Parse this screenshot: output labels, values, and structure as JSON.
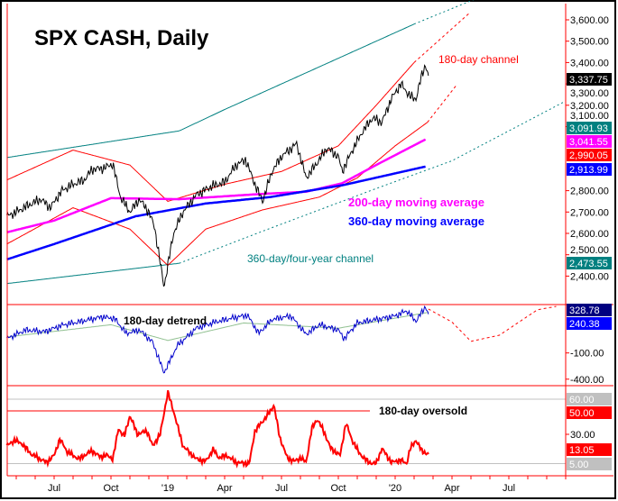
{
  "chart_data": {
    "type": "line",
    "title": "SPX CASH, Daily",
    "x_unit": "months since 2018-04-01",
    "x_ticks": [
      {
        "label": "Jul",
        "m": 3
      },
      {
        "label": "Oct",
        "m": 6
      },
      {
        "label": "'19",
        "m": 9
      },
      {
        "label": "Apr",
        "m": 12
      },
      {
        "label": "Jul",
        "m": 15
      },
      {
        "label": "Oct",
        "m": 18
      },
      {
        "label": "'20",
        "m": 21
      },
      {
        "label": "Apr",
        "m": 24
      },
      {
        "label": "Jul",
        "m": 27
      }
    ],
    "price_panel": {
      "ylim": [
        2330,
        3690
      ],
      "y_ticks": [
        "3,600.00",
        "3,500.00",
        "3,400.00",
        "3,300.00",
        "3,200.00",
        "3,100.00",
        "2,800.00",
        "2,700.00",
        "2,600.00",
        "2,500.00",
        "2,400.00"
      ],
      "y_tick_values": [
        3600,
        3500,
        3400,
        3300,
        3200,
        3100,
        2800,
        2700,
        2600,
        2500,
        2400
      ],
      "price": [
        [
          0.5,
          2680
        ],
        [
          1,
          2700
        ],
        [
          1.6,
          2730
        ],
        [
          2.3,
          2760
        ],
        [
          2.8,
          2720
        ],
        [
          3.4,
          2800
        ],
        [
          4,
          2830
        ],
        [
          4.6,
          2850
        ],
        [
          5,
          2900
        ],
        [
          5.6,
          2905
        ],
        [
          6.1,
          2925
        ],
        [
          6.5,
          2770
        ],
        [
          7,
          2700
        ],
        [
          7.5,
          2760
        ],
        [
          8,
          2700
        ],
        [
          8.3,
          2630
        ],
        [
          8.8,
          2350
        ],
        [
          9.3,
          2600
        ],
        [
          9.8,
          2700
        ],
        [
          10.5,
          2780
        ],
        [
          11.3,
          2820
        ],
        [
          12,
          2840
        ],
        [
          12.6,
          2920
        ],
        [
          13.1,
          2945
        ],
        [
          13.6,
          2830
        ],
        [
          14,
          2750
        ],
        [
          14.5,
          2890
        ],
        [
          15,
          2960
        ],
        [
          15.8,
          3020
        ],
        [
          16.3,
          2860
        ],
        [
          16.8,
          2920
        ],
        [
          17.4,
          3000
        ],
        [
          18,
          2960
        ],
        [
          18.2,
          2890
        ],
        [
          18.8,
          3000
        ],
        [
          19.3,
          3080
        ],
        [
          19.8,
          3140
        ],
        [
          20.3,
          3120
        ],
        [
          20.8,
          3230
        ],
        [
          21.3,
          3300
        ],
        [
          21.8,
          3240
        ],
        [
          22.1,
          3230
        ],
        [
          22.4,
          3340
        ],
        [
          22.6,
          3390
        ],
        [
          22.75,
          3338
        ]
      ],
      "ma200": [
        [
          0.5,
          2605
        ],
        [
          3,
          2660
        ],
        [
          6,
          2765
        ],
        [
          9.6,
          2760
        ],
        [
          14,
          2785
        ],
        [
          16.3,
          2795
        ],
        [
          18.2,
          2835
        ],
        [
          20.1,
          2925
        ],
        [
          22.6,
          3040
        ]
      ],
      "ma360": [
        [
          0.5,
          2478
        ],
        [
          3,
          2550
        ],
        [
          7.3,
          2680
        ],
        [
          11,
          2740
        ],
        [
          14.4,
          2770
        ],
        [
          18.2,
          2825
        ],
        [
          22.6,
          2913
        ]
      ],
      "channel180_upper": [
        [
          0.5,
          2850
        ],
        [
          4,
          2990
        ],
        [
          7,
          2920
        ],
        [
          9,
          2750
        ],
        [
          12,
          2830
        ],
        [
          15,
          2890
        ],
        [
          18,
          3010
        ],
        [
          20,
          3200
        ],
        [
          22,
          3400
        ]
      ],
      "channel180_upper_proj": [
        [
          22,
          3400
        ],
        [
          24.9,
          3630
        ]
      ],
      "channel180_lower": [
        [
          0.5,
          2550
        ],
        [
          4,
          2720
        ],
        [
          7,
          2620
        ],
        [
          9,
          2450
        ],
        [
          11,
          2620
        ],
        [
          14,
          2710
        ],
        [
          17,
          2770
        ],
        [
          19,
          2860
        ],
        [
          21,
          3010
        ],
        [
          22.7,
          3120
        ]
      ],
      "channel180_lower_proj": [
        [
          22.7,
          3120
        ],
        [
          24.2,
          3290
        ]
      ],
      "channel360_upper": [
        [
          0.5,
          2955
        ],
        [
          9.6,
          3080
        ],
        [
          12,
          3180
        ],
        [
          15,
          3300
        ],
        [
          18,
          3420
        ],
        [
          22,
          3580
        ]
      ],
      "channel360_upper_proj": [
        [
          22,
          3580
        ],
        [
          25.3,
          3700
        ]
      ],
      "channel360_lower": [
        [
          0.5,
          2365
        ],
        [
          9.6,
          2460
        ]
      ],
      "channel360_lower_proj": [
        [
          9.6,
          2460
        ],
        [
          14,
          2610
        ],
        [
          20,
          2810
        ],
        [
          24,
          2940
        ],
        [
          30,
          3220
        ]
      ],
      "annotations": [
        "180-day channel",
        "200-day moving average",
        "360-day moving average",
        "360-day/four-year channel"
      ],
      "last_values": [
        {
          "label": "3,337.75",
          "color": "#000000",
          "text": "#ffffff",
          "v": 3337.75
        },
        {
          "label": "3,091.93",
          "color": "#008080",
          "text": "#ffffff",
          "v": 3091.93
        },
        {
          "label": "3,041.55",
          "color": "#ff00ff",
          "text": "#ffffff",
          "v": 3041.55
        },
        {
          "label": "2,990.05",
          "color": "#ff0000",
          "text": "#ffffff",
          "v": 2990.05
        },
        {
          "label": "2,913.99",
          "color": "#0000ff",
          "text": "#ffffff",
          "v": 2913.99
        },
        {
          "label": "2,473.55",
          "color": "#008080",
          "text": "#ffffff",
          "v": 2473.55
        }
      ]
    },
    "detrend_panel": {
      "label": "180-day detrend",
      "y_ticks": [
        "-100.00",
        "-400.00"
      ],
      "y_tick_values": [
        -100,
        -400
      ],
      "series": [
        [
          0.5,
          -40
        ],
        [
          1.5,
          60
        ],
        [
          2.5,
          40
        ],
        [
          3.5,
          120
        ],
        [
          4.5,
          160
        ],
        [
          5.5,
          210
        ],
        [
          6.2,
          190
        ],
        [
          6.8,
          20
        ],
        [
          7.5,
          60
        ],
        [
          8.2,
          -80
        ],
        [
          8.8,
          -430
        ],
        [
          9.5,
          -120
        ],
        [
          10.5,
          80
        ],
        [
          11.5,
          150
        ],
        [
          12.5,
          200
        ],
        [
          13.2,
          230
        ],
        [
          13.8,
          20
        ],
        [
          14.5,
          180
        ],
        [
          15.5,
          220
        ],
        [
          16.3,
          10
        ],
        [
          17,
          120
        ],
        [
          18,
          60
        ],
        [
          18.3,
          -40
        ],
        [
          19,
          140
        ],
        [
          20,
          180
        ],
        [
          21,
          220
        ],
        [
          21.6,
          280
        ],
        [
          22.1,
          160
        ],
        [
          22.6,
          330
        ],
        [
          22.75,
          240
        ]
      ],
      "projection": [
        [
          22.75,
          300
        ],
        [
          24,
          150
        ],
        [
          25,
          -70
        ],
        [
          26.5,
          0
        ],
        [
          28.5,
          290
        ],
        [
          29.5,
          330
        ]
      ],
      "last_values": [
        {
          "label": "328.78",
          "color": "#000080"
        },
        {
          "label": "240.38",
          "color": "#0000ff"
        }
      ]
    },
    "oscillator_panel": {
      "label": "180-day oversold",
      "y_ticks": [
        "30.00"
      ],
      "levels": [
        {
          "label": "60.00",
          "v": 60,
          "color": "#c0c0c0"
        },
        {
          "label": "50.00",
          "v": 50,
          "color": "#ff0000"
        },
        {
          "label": "5.00",
          "v": 5,
          "color": "#c0c0c0"
        }
      ],
      "series": [
        [
          0.5,
          20
        ],
        [
          0.9,
          25
        ],
        [
          1.3,
          22
        ],
        [
          1.8,
          13
        ],
        [
          2.6,
          6
        ],
        [
          3,
          12
        ],
        [
          3.3,
          26
        ],
        [
          3.7,
          15
        ],
        [
          4.3,
          9
        ],
        [
          4.6,
          12
        ],
        [
          5,
          16
        ],
        [
          5.4,
          11
        ],
        [
          5.8,
          12
        ],
        [
          6.1,
          9
        ],
        [
          6.4,
          35
        ],
        [
          6.7,
          28
        ],
        [
          7,
          46
        ],
        [
          7.4,
          30
        ],
        [
          7.9,
          33
        ],
        [
          8.2,
          20
        ],
        [
          8.6,
          30
        ],
        [
          9,
          66
        ],
        [
          9.3,
          50
        ],
        [
          9.8,
          20
        ],
        [
          10.5,
          9
        ],
        [
          11,
          7
        ],
        [
          11.4,
          17
        ],
        [
          11.7,
          10
        ],
        [
          12.1,
          12
        ],
        [
          12.6,
          6
        ],
        [
          13.3,
          5
        ],
        [
          13.6,
          33
        ],
        [
          14,
          41
        ],
        [
          14.3,
          47
        ],
        [
          14.6,
          55
        ],
        [
          14.9,
          28
        ],
        [
          15.3,
          10
        ],
        [
          15.7,
          7
        ],
        [
          16,
          10
        ],
        [
          16.3,
          6
        ],
        [
          16.6,
          35
        ],
        [
          16.9,
          43
        ],
        [
          17.3,
          30
        ],
        [
          17.6,
          18
        ],
        [
          18.1,
          12
        ],
        [
          18.4,
          40
        ],
        [
          18.7,
          26
        ],
        [
          19.1,
          14
        ],
        [
          19.6,
          6
        ],
        [
          20,
          5
        ],
        [
          20.3,
          18
        ],
        [
          20.8,
          6
        ],
        [
          21.3,
          8
        ],
        [
          21.6,
          5
        ],
        [
          21.8,
          18
        ],
        [
          22.1,
          25
        ],
        [
          22.4,
          16
        ],
        [
          22.75,
          13
        ]
      ],
      "last_value": {
        "label": "13.05",
        "color": "#ff0000"
      }
    }
  }
}
